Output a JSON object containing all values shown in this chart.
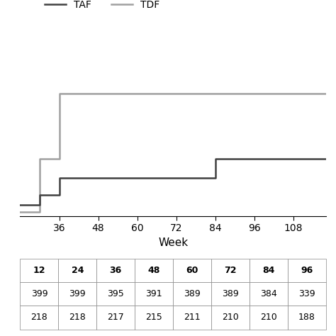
{
  "xlabel": "Week",
  "legend_labels": [
    "TAF",
    "TDF"
  ],
  "taf_x": [
    24,
    30,
    30,
    36,
    36,
    84,
    84,
    120
  ],
  "taf_y": [
    0.004,
    0.004,
    0.009,
    0.009,
    0.018,
    0.018,
    0.028,
    0.028
  ],
  "tdf_x": [
    24,
    30,
    30,
    36,
    36,
    120
  ],
  "tdf_y": [
    0.0,
    0.0,
    0.028,
    0.028,
    0.062,
    0.062
  ],
  "xlim": [
    24,
    118
  ],
  "xticks": [
    36,
    48,
    60,
    72,
    84,
    96,
    108
  ],
  "ylim": [
    -0.002,
    0.09
  ],
  "table_col_labels": [
    "12",
    "24",
    "36",
    "48",
    "60",
    "72",
    "84",
    "96"
  ],
  "table_row1": [
    "399",
    "399",
    "395",
    "391",
    "389",
    "389",
    "384",
    "339"
  ],
  "table_row2": [
    "218",
    "218",
    "217",
    "215",
    "211",
    "210",
    "210",
    "188"
  ],
  "taf_color": "#404040",
  "tdf_color": "#a0a0a0",
  "line_width": 1.8
}
